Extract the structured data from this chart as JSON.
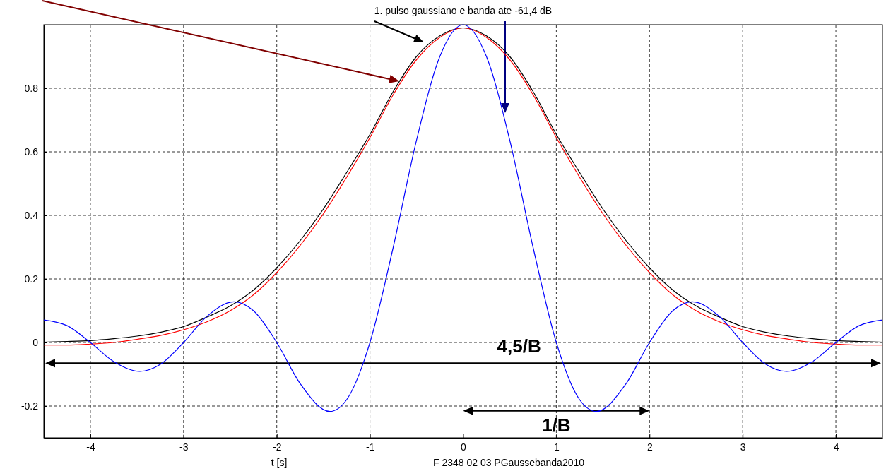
{
  "chart_data": {
    "type": "line",
    "title": "1.  pulso gaussiano e banda ate -61,4 dB",
    "xlabel": "t [s]",
    "x": [
      -4.5,
      -4.25,
      -4,
      -3.75,
      -3.5,
      -3.25,
      -3,
      -2.75,
      -2.5,
      -2.25,
      -2,
      -1.75,
      -1.5,
      -1.25,
      -1,
      -0.75,
      -0.5,
      -0.25,
      0,
      0.25,
      0.5,
      0.75,
      1,
      1.25,
      1.5,
      1.75,
      2,
      2.25,
      2.5,
      2.75,
      3,
      3.25,
      3.5,
      3.75,
      4,
      4.25,
      4.5
    ],
    "series": [
      {
        "color": "#000000",
        "values": [
          0.001,
          0.003,
          0.006,
          0.012,
          0.02,
          0.032,
          0.05,
          0.08,
          0.115,
          0.165,
          0.235,
          0.32,
          0.42,
          0.535,
          0.655,
          0.79,
          0.9,
          0.965,
          0.99,
          0.965,
          0.9,
          0.79,
          0.655,
          0.535,
          0.42,
          0.32,
          0.235,
          0.165,
          0.115,
          0.08,
          0.05,
          0.032,
          0.02,
          0.012,
          0.006,
          0.003,
          0.001
        ]
      },
      {
        "color": "#ff0000",
        "values": [
          -0.008,
          -0.008,
          -0.005,
          0.0,
          0.01,
          0.022,
          0.04,
          0.065,
          0.1,
          0.15,
          0.22,
          0.305,
          0.405,
          0.52,
          0.645,
          0.78,
          0.89,
          0.96,
          0.99,
          0.96,
          0.89,
          0.78,
          0.645,
          0.52,
          0.405,
          0.305,
          0.22,
          0.15,
          0.1,
          0.065,
          0.04,
          0.022,
          0.01,
          0.0,
          -0.005,
          -0.008,
          -0.008
        ]
      },
      {
        "color": "#0000ff",
        "x": [
          -4.5,
          -4.25,
          -4,
          -3.75,
          -3.47,
          -3.25,
          -3,
          -2.75,
          -2.46,
          -2.25,
          -2,
          -1.75,
          -1.43,
          -1.25,
          -1,
          -0.75,
          -0.5,
          -0.25,
          0,
          0.25,
          0.5,
          0.75,
          1,
          1.25,
          1.43,
          1.75,
          2,
          2.25,
          2.46,
          2.75,
          3,
          3.25,
          3.47,
          3.75,
          4,
          4.25,
          4.5
        ],
        "values": [
          0.071,
          0.053,
          0,
          -0.06,
          -0.091,
          -0.069,
          0,
          0.082,
          0.128,
          0.1,
          0,
          -0.129,
          -0.217,
          -0.18,
          0,
          0.3,
          0.637,
          0.9,
          1,
          0.9,
          0.637,
          0.3,
          0,
          -0.18,
          -0.217,
          -0.129,
          0,
          0.1,
          0.128,
          0.082,
          0,
          -0.069,
          -0.091,
          -0.06,
          0,
          0.053,
          0.071
        ]
      }
    ],
    "xlim": [
      -4.5,
      4.5
    ],
    "xticks": [
      -4,
      -3,
      -2,
      -1,
      0,
      1,
      2,
      3,
      4
    ],
    "ylim": [
      -0.3,
      1.0
    ],
    "yticks": [
      -0.2,
      0,
      0.2,
      0.4,
      0.6,
      0.8
    ],
    "grid": true,
    "line_style": "solid",
    "marker": "none",
    "annotations": [
      "4,5/B",
      "1/B",
      "F 2348 02 03 PGaussebanda2010"
    ]
  }
}
